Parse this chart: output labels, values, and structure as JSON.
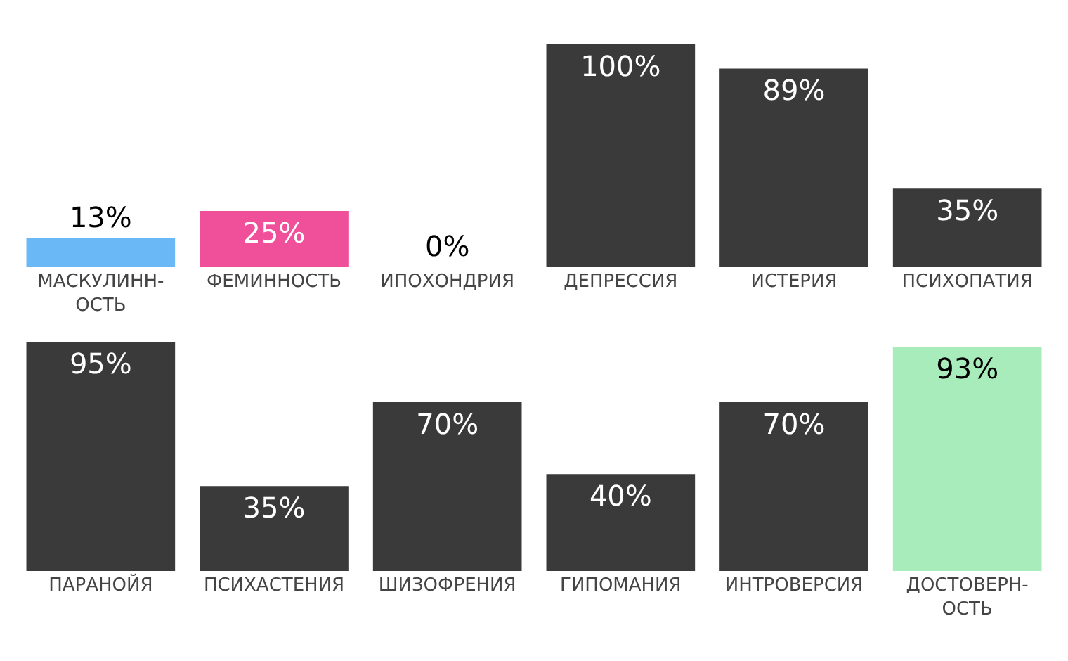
{
  "chart_data": [
    {
      "type": "bar",
      "categories": [
        "МАСКУЛИНН-\nОСТЬ",
        "ФЕМИННОСТЬ",
        "ИПОХОНДРИЯ",
        "ДЕПРЕССИЯ",
        "ИСТЕРИЯ",
        "ПСИХОПАТИЯ"
      ],
      "values": [
        13,
        25,
        0,
        100,
        89,
        35
      ],
      "value_labels": [
        "13%",
        "25%",
        "0%",
        "100%",
        "89%",
        "35%"
      ],
      "colors": [
        "#6ab8f5",
        "#f0509a",
        "#3a3a3a",
        "#3a3a3a",
        "#3a3a3a",
        "#3a3a3a"
      ],
      "tick_labels": "x"
    },
    {
      "type": "bar",
      "categories": [
        "ПАРАНОЙЯ",
        "ПСИХАСТЕНИЯ",
        "ШИЗОФРЕНИЯ",
        "ГИПОМАНИЯ",
        "ИНТРОВЕРСИЯ",
        "ДОСТОВЕРН-\nОСТЬ"
      ],
      "values": [
        95,
        35,
        70,
        40,
        70,
        93
      ],
      "value_labels": [
        "95%",
        "35%",
        "70%",
        "40%",
        "70%",
        "93%"
      ],
      "colors": [
        "#3a3a3a",
        "#3a3a3a",
        "#3a3a3a",
        "#3a3a3a",
        "#3a3a3a",
        "#a8ecbc"
      ],
      "tick_labels": "x"
    }
  ]
}
